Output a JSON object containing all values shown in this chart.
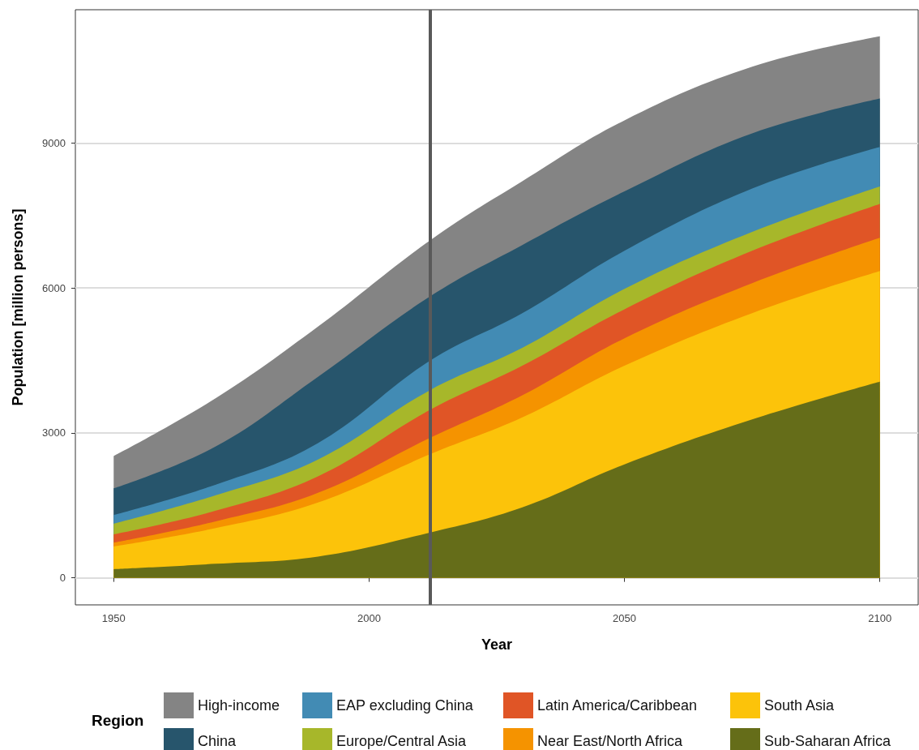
{
  "chart_data": {
    "type": "area",
    "stacked": true,
    "xlabel": "Year",
    "ylabel": "Population [million persons]",
    "legend_title": "Region",
    "legend": "bottom",
    "x": [
      1950,
      1970,
      1990,
      2012,
      2030,
      2050,
      2075,
      2100
    ],
    "xlim": [
      1942.5,
      2107.5
    ],
    "xticks": [
      1950,
      2000,
      2050,
      2100
    ],
    "ylim": [
      -560,
      11760
    ],
    "yticks": [
      0,
      3000,
      6000,
      9000
    ],
    "grid": "y",
    "ref_lines": [
      {
        "axis": "x",
        "value": 2012,
        "color": "#595959"
      }
    ],
    "series": [
      {
        "name": "Sub-Saharan Africa",
        "color": "#656d19",
        "values": [
          180,
          290,
          440,
          940,
          1460,
          2350,
          3280,
          4060
        ]
      },
      {
        "name": "South Asia",
        "color": "#fcc30a",
        "values": [
          470,
          740,
          1120,
          1620,
          1860,
          2040,
          2200,
          2290
        ]
      },
      {
        "name": "Near East/North Africa",
        "color": "#f59300",
        "values": [
          80,
          140,
          200,
          340,
          460,
          570,
          620,
          690
        ]
      },
      {
        "name": "Latin America/Caribbean",
        "color": "#e05526",
        "values": [
          170,
          220,
          340,
          580,
          610,
          600,
          670,
          700
        ]
      },
      {
        "name": "Europe/Central Asia",
        "color": "#a7b72a",
        "values": [
          220,
          320,
          350,
          410,
          370,
          420,
          390,
          360
        ]
      },
      {
        "name": "EAP excluding China",
        "color": "#428bb4",
        "values": [
          180,
          220,
          340,
          610,
          720,
          790,
          900,
          820
        ]
      },
      {
        "name": "China",
        "color": "#27556c",
        "values": [
          550,
          790,
          1370,
          1330,
          1410,
          1230,
          1140,
          1000
        ]
      },
      {
        "name": "High-income",
        "color": "#848484",
        "values": [
          670,
          1000,
          1040,
          1160,
          1320,
          1470,
          1380,
          1290
        ]
      }
    ]
  }
}
